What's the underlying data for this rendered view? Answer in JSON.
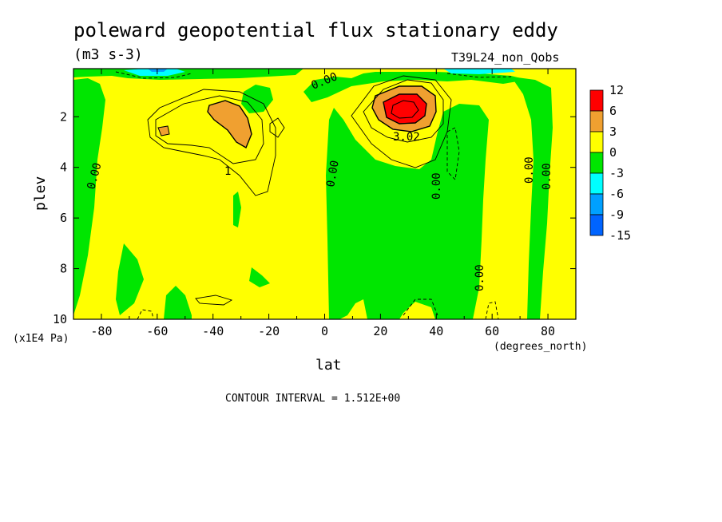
{
  "chart_data": {
    "type": "contour",
    "title": "poleward geopotential flux stationary eddy",
    "units": "(m3 s-3)",
    "experiment": "T39L24_non_Qobs",
    "xlabel": "lat",
    "xunits": "(degrees_north)",
    "ylabel": "plev",
    "yunits": "(x1E4 Pa)",
    "xlim": [
      -90,
      90
    ],
    "ylim": [
      10,
      0.1
    ],
    "x_ticks": [
      -80,
      -60,
      -40,
      -20,
      0,
      20,
      40,
      60,
      80
    ],
    "y_ticks": [
      2,
      4,
      6,
      8,
      10
    ],
    "contour_interval_text": "CONTOUR INTERVAL = 1.512E+00",
    "contour_labels": [
      "0.00",
      "0.00",
      "0.00",
      "0.00",
      "0.00",
      "0.00",
      "0.00",
      "0.00",
      "3.02",
      "1"
    ],
    "colorbar": {
      "labels": [
        "12",
        "6",
        "3",
        "0",
        "-3",
        "-6",
        "-9",
        "-15"
      ],
      "colors": [
        "#ff0000",
        "#f0a030",
        "#ffff00",
        "#00e600",
        "#00ffff",
        "#00a0ff",
        "#0064ff"
      ]
    },
    "features": [
      {
        "kind": "max",
        "lat": 28,
        "plev": 1.7,
        "value": 12,
        "note": "strong positive core NH"
      },
      {
        "kind": "max",
        "lat": -34,
        "plev": 2.2,
        "value": 6,
        "note": "positive core SH"
      },
      {
        "kind": "region",
        "sign": "negative",
        "lat_range": [
          2,
          58
        ],
        "plev_range": [
          2.5,
          10
        ]
      },
      {
        "kind": "region",
        "sign": "negative",
        "lat_range": [
          -90,
          -75
        ],
        "plev_range": [
          0.5,
          10
        ]
      },
      {
        "kind": "region",
        "sign": "negative",
        "lat_range": [
          65,
          80
        ],
        "plev_range": [
          0.5,
          10
        ]
      }
    ]
  }
}
